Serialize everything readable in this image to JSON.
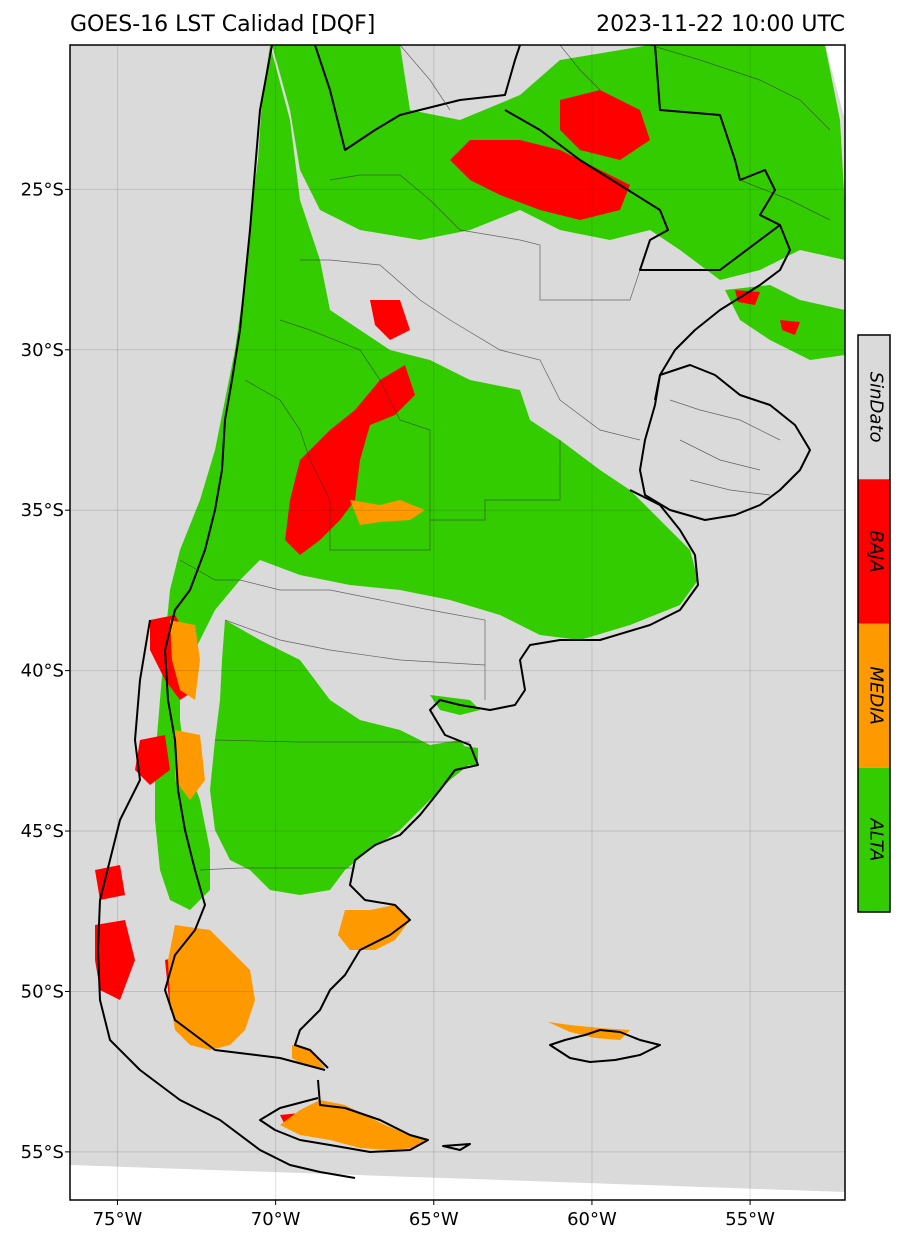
{
  "header": {
    "title": "GOES-16 LST Calidad [DQF]",
    "timestamp": "2023-11-22 10:00 UTC"
  },
  "map": {
    "lon_range": [
      -76.5,
      -52
    ],
    "lat_range": [
      -56.5,
      -20.5
    ],
    "background_color": "#d9dad9",
    "land_no_data_color": "#d9dad9",
    "ocean_color": "#d9dad9",
    "lon_ticks": [
      {
        "value": -75,
        "label": "75°W"
      },
      {
        "value": -70,
        "label": "70°W"
      },
      {
        "value": -65,
        "label": "65°W"
      },
      {
        "value": -60,
        "label": "60°W"
      },
      {
        "value": -55,
        "label": "55°W"
      }
    ],
    "lat_ticks": [
      {
        "value": -25,
        "label": "25°S"
      },
      {
        "value": -30,
        "label": "30°S"
      },
      {
        "value": -35,
        "label": "35°S"
      },
      {
        "value": -40,
        "label": "40°S"
      },
      {
        "value": -45,
        "label": "45°S"
      },
      {
        "value": -50,
        "label": "50°S"
      },
      {
        "value": -55,
        "label": "55°S"
      }
    ],
    "gridlines": true
  },
  "legend": {
    "classes": [
      {
        "label": "SinDato",
        "color": "#d9dad9"
      },
      {
        "label": "BAJA",
        "color": "#ff0000"
      },
      {
        "label": "MEDIA",
        "color": "#ff9900"
      },
      {
        "label": "ALTA",
        "color": "#33cc00"
      }
    ]
  }
}
